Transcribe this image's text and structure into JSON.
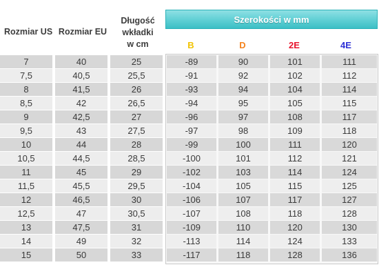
{
  "headers": {
    "us": "Rozmiar US",
    "eu": "Rozmiar EU",
    "insert_line1": "Długość",
    "insert_line2": "wkładki",
    "insert_line3": "w cm",
    "widths_title": "Szerokości w mm"
  },
  "width_labels": [
    {
      "text": "B",
      "color": "#f2c300"
    },
    {
      "text": "D",
      "color": "#f5841f"
    },
    {
      "text": "2E",
      "color": "#e8132b"
    },
    {
      "text": "4E",
      "color": "#2d2fd6"
    }
  ],
  "rows": [
    {
      "us": "7",
      "eu": "40",
      "cm": "25",
      "b": "-89",
      "d": "90",
      "e2": "101",
      "e4": "111"
    },
    {
      "us": "7,5",
      "eu": "40,5",
      "cm": "25,5",
      "b": "-91",
      "d": "92",
      "e2": "102",
      "e4": "112"
    },
    {
      "us": "8",
      "eu": "41,5",
      "cm": "26",
      "b": "-93",
      "d": "94",
      "e2": "104",
      "e4": "114"
    },
    {
      "us": "8,5",
      "eu": "42",
      "cm": "26,5",
      "b": "-94",
      "d": "95",
      "e2": "105",
      "e4": "115"
    },
    {
      "us": "9",
      "eu": "42,5",
      "cm": "27",
      "b": "-96",
      "d": "97",
      "e2": "108",
      "e4": "117"
    },
    {
      "us": "9,5",
      "eu": "43",
      "cm": "27,5",
      "b": "-97",
      "d": "98",
      "e2": "109",
      "e4": "118"
    },
    {
      "us": "10",
      "eu": "44",
      "cm": "28",
      "b": "-99",
      "d": "100",
      "e2": "111",
      "e4": "120"
    },
    {
      "us": "10,5",
      "eu": "44,5",
      "cm": "28,5",
      "b": "-100",
      "d": "101",
      "e2": "112",
      "e4": "121"
    },
    {
      "us": "11",
      "eu": "45",
      "cm": "29",
      "b": "-102",
      "d": "103",
      "e2": "114",
      "e4": "124"
    },
    {
      "us": "11,5",
      "eu": "45,5",
      "cm": "29,5",
      "b": "-104",
      "d": "105",
      "e2": "115",
      "e4": "125"
    },
    {
      "us": "12",
      "eu": "46,5",
      "cm": "30",
      "b": "-106",
      "d": "107",
      "e2": "117",
      "e4": "127"
    },
    {
      "us": "12,5",
      "eu": "47",
      "cm": "30,5",
      "b": "-107",
      "d": "108",
      "e2": "118",
      "e4": "128"
    },
    {
      "us": "13",
      "eu": "47,5",
      "cm": "31",
      "b": "-109",
      "d": "110",
      "e2": "120",
      "e4": "130"
    },
    {
      "us": "14",
      "eu": "49",
      "cm": "32",
      "b": "-113",
      "d": "114",
      "e2": "124",
      "e4": "133"
    },
    {
      "us": "15",
      "eu": "50",
      "cm": "33",
      "b": "-117",
      "d": "118",
      "e2": "128",
      "e4": "136"
    }
  ]
}
